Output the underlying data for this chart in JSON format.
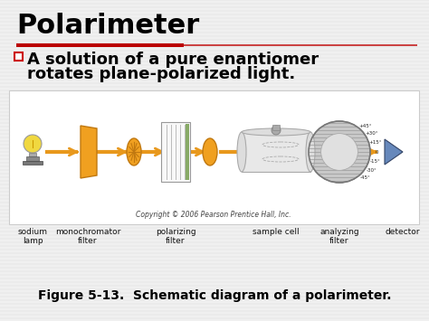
{
  "bg_color": "#e8e8e8",
  "slide_bg": "#f0f0f0",
  "title": "Polarimeter",
  "title_color": "#000000",
  "title_fontsize": 22,
  "red_line_thick_color": "#bb0000",
  "red_line_thin_color": "#cc4444",
  "bullet_box_color": "#cc0000",
  "bullet_text_line1": "A solution of a pure enantiomer",
  "bullet_text_line2": "rotates plane-polarized light.",
  "bullet_fontsize": 13,
  "diagram_bg": "#ffffff",
  "diagram_border": "#cccccc",
  "arrow_color": "#e8981c",
  "labels": [
    "sodium\nlamp",
    "monochromator\nfilter",
    "polarizing\nfilter",
    "sample cell",
    "analyzing\nfilter",
    "detector"
  ],
  "label_fontsize": 6.5,
  "copyright": "Copyright © 2006 Pearson Prentice Hall, Inc.",
  "copyright_fontsize": 5.5,
  "figure_caption": "Figure 5-13.  Schematic diagram of a polarimeter.",
  "caption_fontsize": 10,
  "orange": "#f0a020",
  "orange_dark": "#c07810",
  "lamp_yellow": "#f0d840",
  "sample_cell_color": "#e8e8e8",
  "analyzing_color": "#c8c8c8",
  "detector_color": "#6688bb"
}
